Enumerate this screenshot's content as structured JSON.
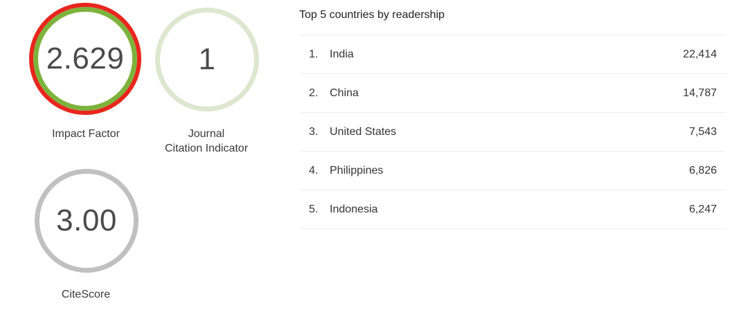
{
  "metrics": {
    "impact_factor": {
      "value": "2.629",
      "label": "Impact Factor",
      "ring_colors": [
        "#e8261d",
        "#7db33c"
      ]
    },
    "jci": {
      "value": "1",
      "label_line1": "Journal",
      "label_line2": "Citation Indicator",
      "ring_color": "#dde6cf"
    },
    "citescore": {
      "value": "3.00",
      "label": "CiteScore",
      "ring_color": "#c0c0c0"
    }
  },
  "readership": {
    "title": "Top 5 countries by readership",
    "rows": [
      {
        "rank": "1.",
        "country": "India",
        "count": "22,414"
      },
      {
        "rank": "2.",
        "country": "China",
        "count": "14,787"
      },
      {
        "rank": "3.",
        "country": "United States",
        "count": "7,543"
      },
      {
        "rank": "4.",
        "country": "Philippines",
        "count": "6,826"
      },
      {
        "rank": "5.",
        "country": "Indonesia",
        "count": "6,247"
      }
    ]
  }
}
